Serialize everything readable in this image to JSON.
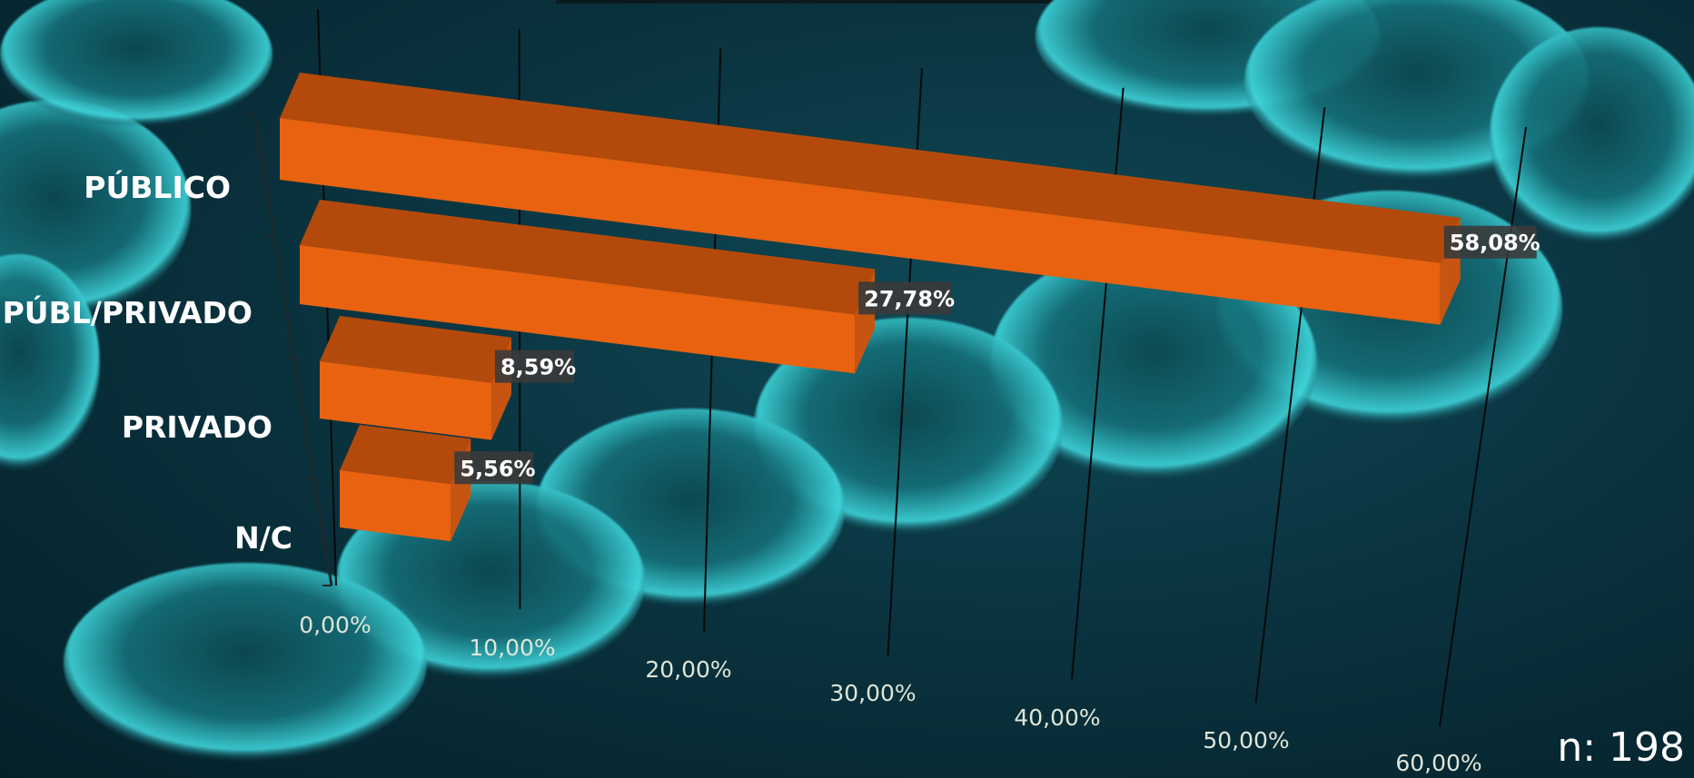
{
  "chart_data": {
    "type": "bar",
    "orientation": "horizontal",
    "style": "3d",
    "categories": [
      "PÚBLICO",
      "PÚBL/PRIVADO",
      "PRIVADO",
      "N/C"
    ],
    "values": [
      58.08,
      27.78,
      8.59,
      5.56
    ],
    "value_labels": [
      "58,08%",
      "27,78%",
      "8,59%",
      "5,56%"
    ],
    "x_ticks": [
      "0,00%",
      "10,00%",
      "20,00%",
      "30,00%",
      "40,00%",
      "50,00%",
      "60,00%"
    ],
    "xlim": [
      0,
      60
    ],
    "grid": true,
    "legend": "none",
    "colors": {
      "bar_front": "#e8620f",
      "bar_top": "#b34a0c",
      "bar_side": "#c75410",
      "gridline": "#050a0c",
      "label_box": "#3a3a3a"
    }
  },
  "footer": {
    "sample_size": "n: 198"
  },
  "background_image": "bacteria-chain-microscopy"
}
